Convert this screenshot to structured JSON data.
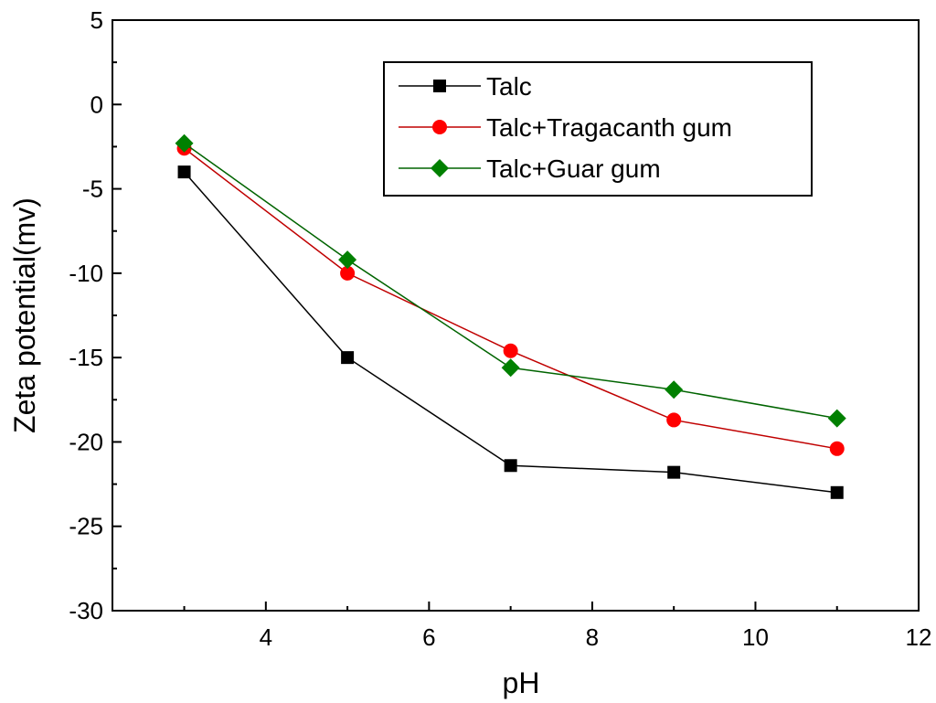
{
  "chart_data": {
    "type": "line",
    "title": "",
    "xlabel": "pH",
    "ylabel": "Zeta potential(mv)",
    "xlim": [
      2.12,
      12
    ],
    "ylim": [
      -30,
      5
    ],
    "xticks": [
      4,
      6,
      8,
      10,
      12
    ],
    "yticks": [
      5,
      0,
      -5,
      -10,
      -15,
      -20,
      -25,
      -30
    ],
    "xtick_labels": [
      "4",
      "6",
      "8",
      "10",
      "12"
    ],
    "ytick_labels": [
      "5",
      "0",
      "-5",
      "-10",
      "-15",
      "-20",
      "-25",
      "-30"
    ],
    "grid": false,
    "legend_position": "top-right",
    "x": [
      3,
      5,
      7,
      9,
      11
    ],
    "series": [
      {
        "name": "Talc",
        "color": "#000000",
        "marker": "square",
        "values": [
          -4.0,
          -15.0,
          -21.4,
          -21.8,
          -23.0
        ]
      },
      {
        "name": "Talc+Tragacanth gum",
        "color": "#ff0000",
        "line_color": "#c00000",
        "marker": "circle",
        "values": [
          -2.6,
          -10.0,
          -14.6,
          -18.7,
          -20.4
        ]
      },
      {
        "name": "Talc+Guar gum",
        "color": "#008000",
        "line_color": "#006400",
        "marker": "diamond",
        "values": [
          -2.3,
          -9.2,
          -15.6,
          -16.9,
          -18.6
        ]
      }
    ]
  }
}
